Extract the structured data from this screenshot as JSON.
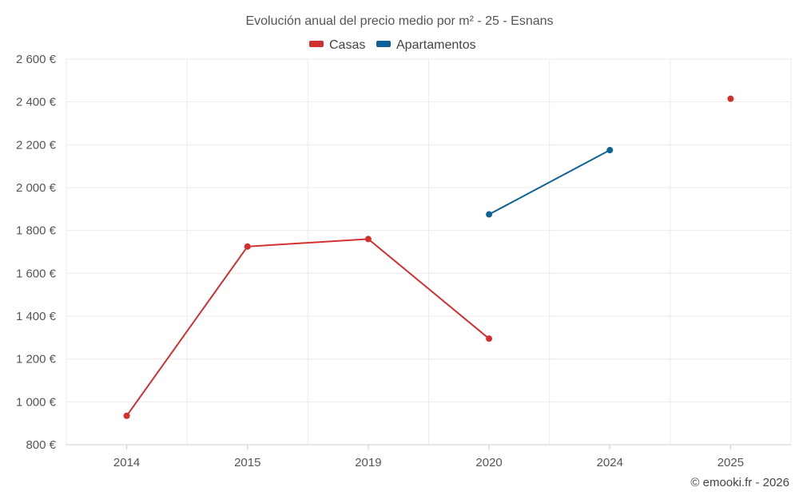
{
  "chart_data": {
    "type": "line",
    "title": "Evolución anual del precio medio por m² - 25 - Esnans",
    "categories": [
      "2014",
      "2015",
      "2019",
      "2020",
      "2024",
      "2025"
    ],
    "ylim": [
      800,
      2600
    ],
    "yticks": [
      800,
      1000,
      1200,
      1400,
      1600,
      1800,
      2000,
      2200,
      2400,
      2600
    ],
    "ytick_labels": [
      "800 €",
      "1 000 €",
      "1 200 €",
      "1 400 €",
      "1 600 €",
      "1 800 €",
      "2 000 €",
      "2 200 €",
      "2 400 €",
      "2 600 €"
    ],
    "grid": true,
    "legend_position": "top-center",
    "series": [
      {
        "name": "Casas",
        "color": "#d32f2f",
        "values": [
          935,
          1725,
          1760,
          1295,
          null,
          2415
        ]
      },
      {
        "name": "Apartamentos",
        "color": "#0d6396",
        "values": [
          null,
          null,
          null,
          1875,
          2175,
          null
        ]
      }
    ]
  },
  "credit": "© emooki.fr - 2026"
}
